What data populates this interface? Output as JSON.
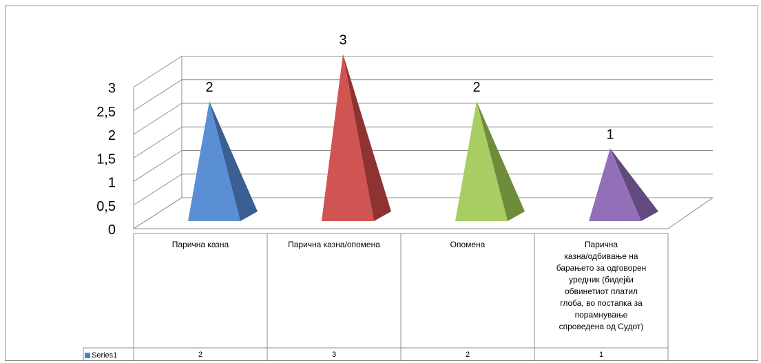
{
  "chart_data": {
    "type": "bar",
    "style": "3d-pyramid",
    "categories": [
      "Парична казна",
      "Парична казна/опомена",
      "Опомена",
      "Парична казна/одбивање на барањето за одговорен уредник (бидејќи обвинетиот платил глоба, во постапка за порамнување спроведена од Судот)"
    ],
    "category_lines": [
      [
        "Парична казна"
      ],
      [
        "Парична казна/опомена"
      ],
      [
        "Опомена"
      ],
      [
        "Парична",
        "казна/одбивање на",
        "барањето за одговорен",
        "уредник (бидејќи",
        "обвинетиот платил",
        "глоба, во постапка за",
        "порамнување",
        "спроведена од Судот)"
      ]
    ],
    "series": [
      {
        "name": "Series1",
        "values": [
          2,
          3,
          2,
          1
        ]
      }
    ],
    "data_labels": [
      "2",
      "3",
      "2",
      "1"
    ],
    "y_ticks": [
      "0",
      "0,5",
      "1",
      "1,5",
      "2",
      "2,5",
      "3"
    ],
    "ylim": [
      0,
      3
    ],
    "grid": true,
    "legend": "data-table",
    "colors": {
      "bars": [
        {
          "face": "#5b8fd4",
          "side": "#3a5f93"
        },
        {
          "face": "#d05452",
          "side": "#8f3332"
        },
        {
          "face": "#a8cd63",
          "side": "#6d8d3b"
        },
        {
          "face": "#9170b9",
          "side": "#62497f"
        }
      ],
      "grid": "#8c8c8c",
      "legend_key": "#4f81bd"
    }
  }
}
